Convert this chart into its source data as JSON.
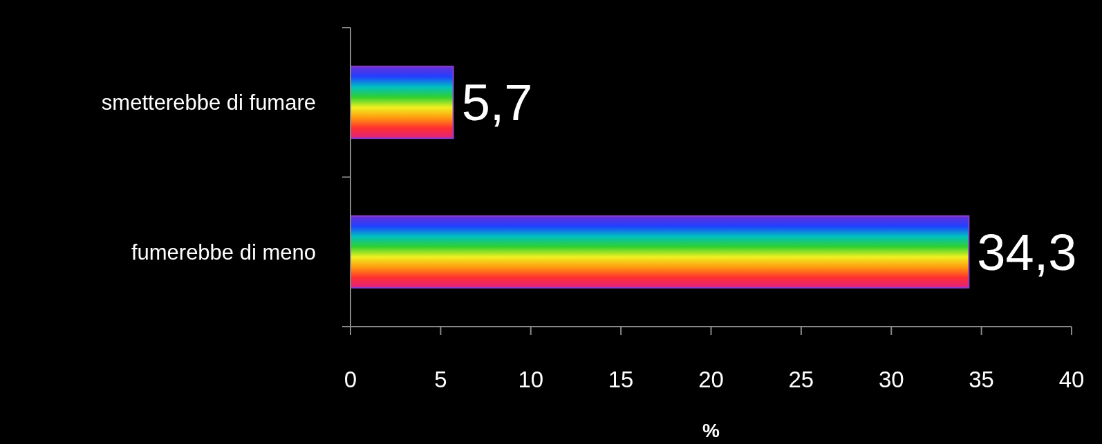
{
  "chart_data": {
    "type": "bar",
    "orientation": "horizontal",
    "categories": [
      "smetterebbe di fumare",
      "fumerebbe di meno"
    ],
    "values": [
      5.7,
      34.3
    ],
    "value_labels": [
      "5,7",
      "34,3"
    ],
    "color": "#8a3fd0",
    "xlim": [
      0,
      40
    ],
    "xticks": [
      0,
      5,
      10,
      15,
      20,
      25,
      30,
      35,
      40
    ],
    "xlabel": "%",
    "grid": false
  }
}
